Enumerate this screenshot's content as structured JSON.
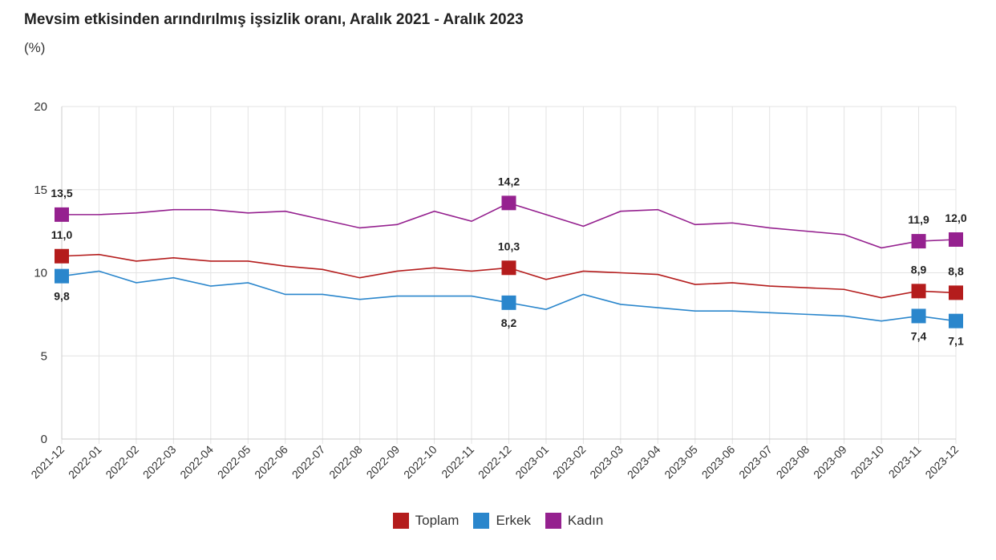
{
  "chart_data": {
    "type": "line",
    "title": "Mevsim etkisinden arındırılmış işsizlik oranı, Aralık 2021 - Aralık 2023",
    "ylabel": "(%)",
    "xlabel": "",
    "ylim": [
      0,
      20
    ],
    "yticks": [
      "0",
      "5",
      "10",
      "15",
      "20"
    ],
    "grid": true,
    "legend": "bottom",
    "x": [
      "2021-12",
      "2022-01",
      "2022-02",
      "2022-03",
      "2022-04",
      "2022-05",
      "2022-06",
      "2022-07",
      "2022-08",
      "2022-09",
      "2022-10",
      "2022-11",
      "2022-12",
      "2023-01",
      "2023-02",
      "2023-03",
      "2023-04",
      "2023-05",
      "2023-06",
      "2023-07",
      "2023-08",
      "2023-09",
      "2023-10",
      "2023-11",
      "2023-12"
    ],
    "series": [
      {
        "name": "Toplam",
        "color": "#b41c1c",
        "labelPos": "above",
        "values": [
          11.0,
          11.1,
          10.7,
          10.9,
          10.7,
          10.7,
          10.4,
          10.2,
          9.7,
          10.1,
          10.3,
          10.1,
          10.3,
          9.6,
          10.1,
          10.0,
          9.9,
          9.3,
          9.4,
          9.2,
          9.1,
          9.0,
          8.5,
          8.9,
          8.8
        ]
      },
      {
        "name": "Erkek",
        "color": "#2a86cc",
        "labelPos": "below",
        "values": [
          9.8,
          10.1,
          9.4,
          9.7,
          9.2,
          9.4,
          8.7,
          8.7,
          8.4,
          8.6,
          8.6,
          8.6,
          8.2,
          7.8,
          8.7,
          8.1,
          7.9,
          7.7,
          7.7,
          7.6,
          7.5,
          7.4,
          7.1,
          7.4,
          7.1
        ]
      },
      {
        "name": "Kadın",
        "color": "#95218f",
        "labelPos": "above",
        "values": [
          13.5,
          13.5,
          13.6,
          13.8,
          13.8,
          13.6,
          13.7,
          13.2,
          12.7,
          12.9,
          13.7,
          13.1,
          14.2,
          13.5,
          12.8,
          13.7,
          13.8,
          12.9,
          13.0,
          12.7,
          12.5,
          12.3,
          11.5,
          11.9,
          12.0
        ]
      }
    ],
    "labeled_points": [
      "2021-12",
      "2022-12",
      "2023-11",
      "2023-12"
    ],
    "data_labels": {
      "Toplam": [
        "11,0",
        "10,3",
        "8,9",
        "8,8"
      ],
      "Erkek": [
        "9,8",
        "8,2",
        "7,4",
        "7,1"
      ],
      "Kadın": [
        "13,5",
        "14,2",
        "11,9",
        "12,0"
      ]
    }
  }
}
